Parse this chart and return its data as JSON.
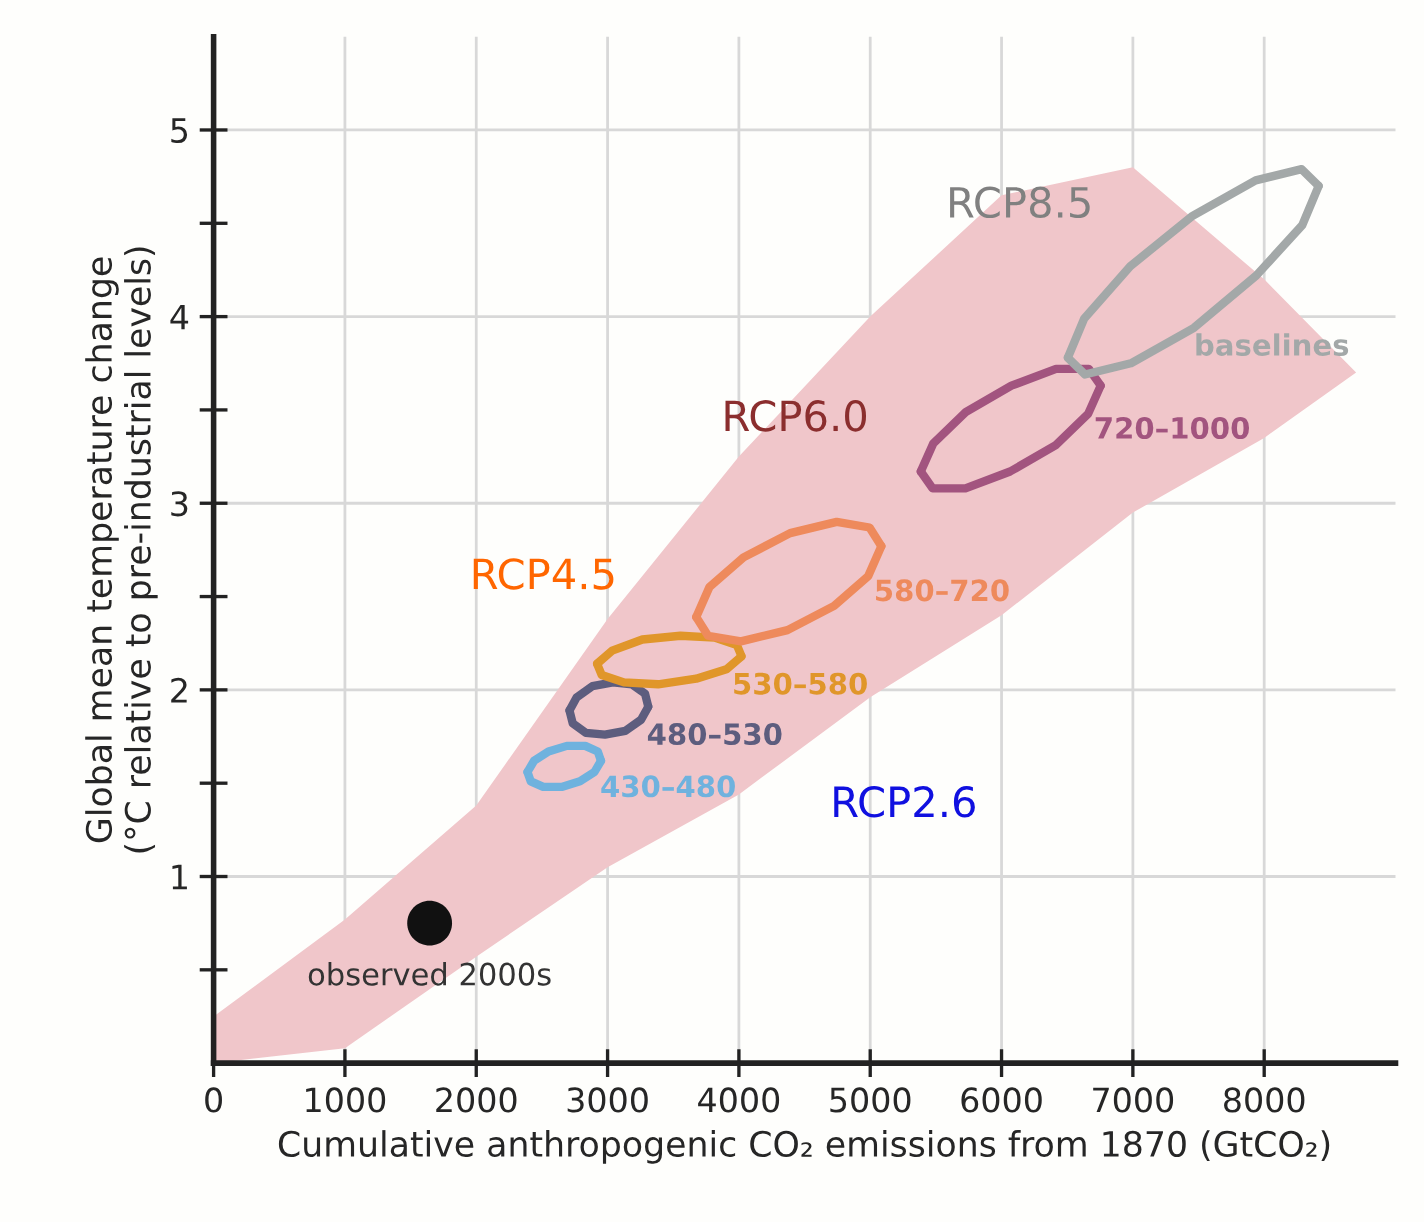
{
  "chart_data": {
    "type": "line",
    "xlabel": "Cumulative anthropogenic CO₂ emissions from 1870 (GtCO₂)",
    "ylabel": "Global mean temperature change\n(°C relative to pre-industrial levels)",
    "xlim": [
      0,
      9000
    ],
    "ylim": [
      0,
      5.5
    ],
    "xticks": [
      0,
      1000,
      2000,
      3000,
      4000,
      5000,
      6000,
      7000,
      8000
    ],
    "yticks": [
      {
        "value": 0.5,
        "label": null
      },
      1,
      {
        "value": 1.5,
        "label": null
      },
      2,
      {
        "value": 2.5,
        "label": null
      },
      3,
      {
        "value": 3.5,
        "label": null
      },
      4,
      {
        "value": 4.5,
        "label": null
      },
      5
    ],
    "grid": true,
    "legend": false,
    "marker": "none",
    "series": [
      {
        "color": "#f0c6ca",
        "x": [
          0,
          1000,
          2000,
          3000,
          4000,
          5000,
          6000,
          7000,
          8000,
          8700
        ],
        "values": [
          null,
          null,
          null,
          null,
          null,
          null,
          null,
          null,
          null,
          null
        ],
        "upper": [
          0.25,
          0.77,
          1.38,
          2.38,
          3.25,
          4.0,
          4.65,
          4.8,
          4.2,
          3.7
        ],
        "lower": [
          0,
          0.08,
          0.57,
          1.05,
          1.44,
          1.96,
          2.4,
          2.95,
          3.35,
          3.7
        ]
      },
      {
        "type": "scatter",
        "name": "observed 2000s",
        "color": "#111111",
        "marker": "circle",
        "x": [
          1645
        ],
        "values": [
          0.75
        ]
      },
      {
        "color": "#6fb2de",
        "x": [
          2390,
          2440,
          2550,
          2690,
          2830,
          2925,
          2950
        ],
        "values": [
          1.56,
          1.62,
          1.67,
          1.7,
          1.7,
          1.67,
          1.62
        ]
      },
      {
        "name": "430–480",
        "color": "#6fb2de",
        "x": [
          2390,
          2415,
          2510,
          2650,
          2790,
          2900,
          2950
        ],
        "values": [
          1.56,
          1.51,
          1.48,
          1.48,
          1.51,
          1.56,
          1.62
        ]
      },
      {
        "color": "#5d5d7e",
        "x": [
          2710,
          2765,
          2885,
          3040,
          3185,
          3285,
          3310
        ],
        "values": [
          1.89,
          1.96,
          2.02,
          2.04,
          2.03,
          1.98,
          1.91
        ]
      },
      {
        "name": "480–530",
        "color": "#5d5d7e",
        "x": [
          2710,
          2735,
          2835,
          2980,
          3135,
          3255,
          3310
        ],
        "values": [
          1.89,
          1.82,
          1.77,
          1.76,
          1.78,
          1.84,
          1.91
        ]
      },
      {
        "color": "#e0962a",
        "x": [
          2920,
          3035,
          3265,
          3555,
          3815,
          3985,
          4020
        ],
        "values": [
          2.14,
          2.21,
          2.27,
          2.29,
          2.28,
          2.24,
          2.18
        ]
      },
      {
        "name": "530–580",
        "color": "#e0962a",
        "x": [
          2920,
          2955,
          3125,
          3385,
          3675,
          3905,
          4020
        ],
        "values": [
          2.14,
          2.08,
          2.04,
          2.03,
          2.06,
          2.11,
          2.18
        ]
      },
      {
        "color": "#ee8a5c",
        "x": [
          3675,
          3775,
          4035,
          4390,
          4745,
          4995,
          5085
        ],
        "values": [
          2.39,
          2.55,
          2.71,
          2.84,
          2.9,
          2.87,
          2.77
        ]
      },
      {
        "name": "580–720",
        "color": "#ee8a5c",
        "x": [
          3675,
          3765,
          4015,
          4370,
          4725,
          4985,
          5085
        ],
        "values": [
          2.39,
          2.29,
          2.26,
          2.32,
          2.45,
          2.61,
          2.77
        ]
      },
      {
        "color": "#a2547f",
        "x": [
          5385,
          5480,
          5730,
          6075,
          6415,
          6665,
          6755
        ],
        "values": [
          3.17,
          3.32,
          3.49,
          3.63,
          3.72,
          3.72,
          3.63
        ]
      },
      {
        "name": "720–1000",
        "color": "#a2547f",
        "x": [
          5385,
          5475,
          5725,
          6065,
          6410,
          6660,
          6755
        ],
        "values": [
          3.17,
          3.08,
          3.08,
          3.17,
          3.31,
          3.48,
          3.63
        ]
      },
      {
        "color": "#a3a8a8",
        "x": [
          6505,
          6630,
          6980,
          7455,
          7935,
          8285,
          8415
        ],
        "values": [
          3.78,
          3.99,
          4.27,
          4.54,
          4.73,
          4.79,
          4.7
        ]
      },
      {
        "name": "baselines",
        "color": "#a3a8a8",
        "x": [
          6505,
          6635,
          6985,
          7465,
          7940,
          8290,
          8415
        ],
        "values": [
          3.78,
          3.69,
          3.75,
          3.94,
          4.22,
          4.49,
          4.7
        ]
      }
    ],
    "annotations": [
      "RCP8.5",
      "RCP6.0",
      "RCP4.5",
      "RCP2.6"
    ]
  }
}
